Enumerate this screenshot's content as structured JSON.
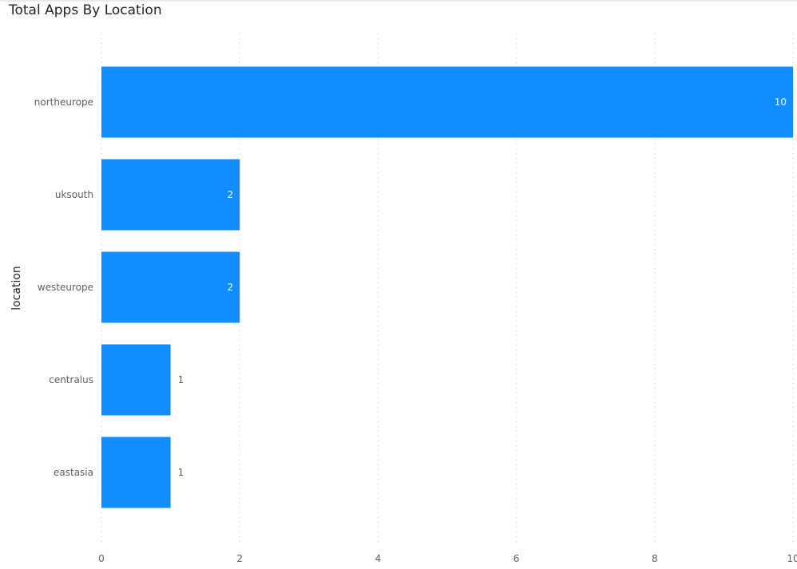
{
  "chart_data": {
    "type": "bar",
    "orientation": "horizontal",
    "title": "Total Apps By Location",
    "ylabel": "location",
    "xlabel": "",
    "categories": [
      "northeurope",
      "uksouth",
      "westeurope",
      "centralus",
      "eastasia"
    ],
    "values": [
      10,
      2,
      2,
      1,
      1
    ],
    "xlim": [
      0,
      10
    ],
    "x_ticks": [
      "0",
      "2",
      "4",
      "6",
      "8",
      "10"
    ],
    "data_labels": [
      "10",
      "2",
      "2",
      "1",
      "1"
    ],
    "grid": "vertical-dotted",
    "bar_color": "#118dff",
    "legend": "none"
  }
}
